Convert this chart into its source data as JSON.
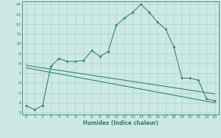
{
  "bg_color": "#cce9e4",
  "grid_color": "#b0d8d2",
  "line_color": "#2e7d6e",
  "xlabel": "Humidex (Indice chaleur)",
  "ylim": [
    2.8,
    14.3
  ],
  "xlim": [
    -0.5,
    23.5
  ],
  "yticks": [
    3,
    4,
    5,
    6,
    7,
    8,
    9,
    10,
    11,
    12,
    13,
    14
  ],
  "xticks": [
    0,
    1,
    2,
    3,
    4,
    5,
    6,
    7,
    8,
    9,
    10,
    11,
    12,
    13,
    14,
    15,
    16,
    17,
    18,
    19,
    20,
    21,
    22,
    23
  ],
  "curve1_x": [
    0,
    1,
    2,
    3,
    4,
    5,
    6,
    7,
    8,
    9,
    10,
    11,
    12,
    13,
    14,
    15,
    16,
    17,
    18,
    19,
    20,
    21,
    22,
    23
  ],
  "curve1_y": [
    3.7,
    3.3,
    3.7,
    7.7,
    8.5,
    8.2,
    8.2,
    8.3,
    9.3,
    8.7,
    9.2,
    11.9,
    12.6,
    13.2,
    14.0,
    13.2,
    12.2,
    11.5,
    9.7,
    6.5,
    6.5,
    6.3,
    4.4,
    4.2
  ],
  "line2_x": [
    0,
    23
  ],
  "line2_y": [
    7.8,
    4.9
  ],
  "line3_x": [
    0,
    23
  ],
  "line3_y": [
    7.55,
    4.0
  ],
  "marker_x": [
    0,
    1,
    2,
    3,
    4,
    5,
    6,
    7,
    8,
    9,
    10,
    11,
    12,
    13,
    14,
    15,
    16,
    17,
    18,
    19,
    20,
    21,
    22,
    23
  ],
  "marker_y": [
    3.7,
    3.3,
    3.7,
    7.7,
    8.5,
    8.2,
    8.2,
    8.3,
    9.3,
    8.7,
    9.2,
    11.9,
    12.6,
    13.2,
    14.0,
    13.2,
    12.2,
    11.5,
    9.7,
    6.5,
    6.5,
    6.3,
    4.4,
    4.2
  ]
}
